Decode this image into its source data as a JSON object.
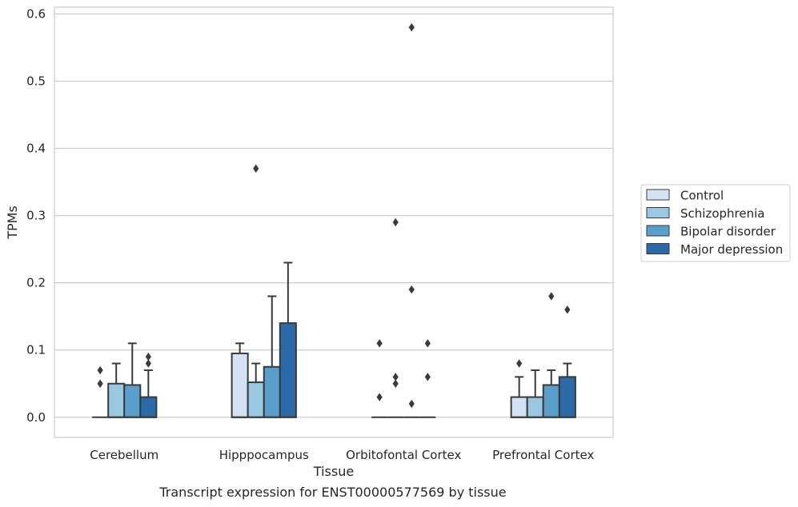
{
  "caption": "Transcript expression for ENST00000577569 by tissue",
  "chart_data": {
    "type": "boxplot",
    "xlabel": "Tissue",
    "ylabel": "TPMs",
    "ylim": [
      -0.03,
      0.61
    ],
    "yticks": [
      "0.0",
      "0.1",
      "0.2",
      "0.3",
      "0.4",
      "0.5",
      "0.6"
    ],
    "grid": "horizontal",
    "legend_position": "right",
    "categories": [
      "Cerebellum",
      "Hipppocampus",
      "Orbitofontal Cortex",
      "Prefrontal Cortex"
    ],
    "series": [
      {
        "name": "Control",
        "color": "#d3e3f3",
        "boxes": [
          {
            "q1": 0,
            "median": 0,
            "q3": 0,
            "whisker_low": 0,
            "whisker_high": 0,
            "outliers": [
              0.07,
              0.05
            ]
          },
          {
            "q1": 0,
            "median": 0,
            "q3": 0.095,
            "whisker_low": 0,
            "whisker_high": 0.11,
            "outliers": []
          },
          {
            "q1": 0,
            "median": 0,
            "q3": 0,
            "whisker_low": 0,
            "whisker_high": 0,
            "outliers": [
              0.11,
              0.03
            ]
          },
          {
            "q1": 0,
            "median": 0,
            "q3": 0.03,
            "whisker_low": 0,
            "whisker_high": 0.06,
            "outliers": [
              0.08
            ]
          }
        ]
      },
      {
        "name": "Schizophrenia",
        "color": "#9ac8e0",
        "boxes": [
          {
            "q1": 0,
            "median": 0,
            "q3": 0.05,
            "whisker_low": 0,
            "whisker_high": 0.08,
            "outliers": []
          },
          {
            "q1": 0,
            "median": 0,
            "q3": 0.052,
            "whisker_low": 0,
            "whisker_high": 0.08,
            "outliers": [
              0.37
            ]
          },
          {
            "q1": 0,
            "median": 0,
            "q3": 0,
            "whisker_low": 0,
            "whisker_high": 0,
            "outliers": [
              0.29,
              0.06,
              0.05
            ]
          },
          {
            "q1": 0,
            "median": 0,
            "q3": 0.03,
            "whisker_low": 0,
            "whisker_high": 0.07,
            "outliers": []
          }
        ]
      },
      {
        "name": "Bipolar disorder",
        "color": "#5a9fcc",
        "boxes": [
          {
            "q1": 0,
            "median": 0,
            "q3": 0.048,
            "whisker_low": 0,
            "whisker_high": 0.11,
            "outliers": []
          },
          {
            "q1": 0,
            "median": 0,
            "q3": 0.075,
            "whisker_low": 0,
            "whisker_high": 0.18,
            "outliers": []
          },
          {
            "q1": 0,
            "median": 0,
            "q3": 0,
            "whisker_low": 0,
            "whisker_high": 0,
            "outliers": [
              0.58,
              0.19,
              0.02
            ]
          },
          {
            "q1": 0,
            "median": 0,
            "q3": 0.048,
            "whisker_low": 0,
            "whisker_high": 0.07,
            "outliers": [
              0.18
            ]
          }
        ]
      },
      {
        "name": "Major depression",
        "color": "#2b6aa9",
        "boxes": [
          {
            "q1": 0,
            "median": 0,
            "q3": 0.03,
            "whisker_low": 0,
            "whisker_high": 0.07,
            "outliers": [
              0.09,
              0.08
            ]
          },
          {
            "q1": 0,
            "median": 0,
            "q3": 0.14,
            "whisker_low": 0,
            "whisker_high": 0.23,
            "outliers": []
          },
          {
            "q1": 0,
            "median": 0,
            "q3": 0,
            "whisker_low": 0,
            "whisker_high": 0,
            "outliers": [
              0.11,
              0.06
            ]
          },
          {
            "q1": 0,
            "median": 0,
            "q3": 0.06,
            "whisker_low": 0,
            "whisker_high": 0.08,
            "outliers": [
              0.16
            ]
          }
        ]
      }
    ]
  }
}
